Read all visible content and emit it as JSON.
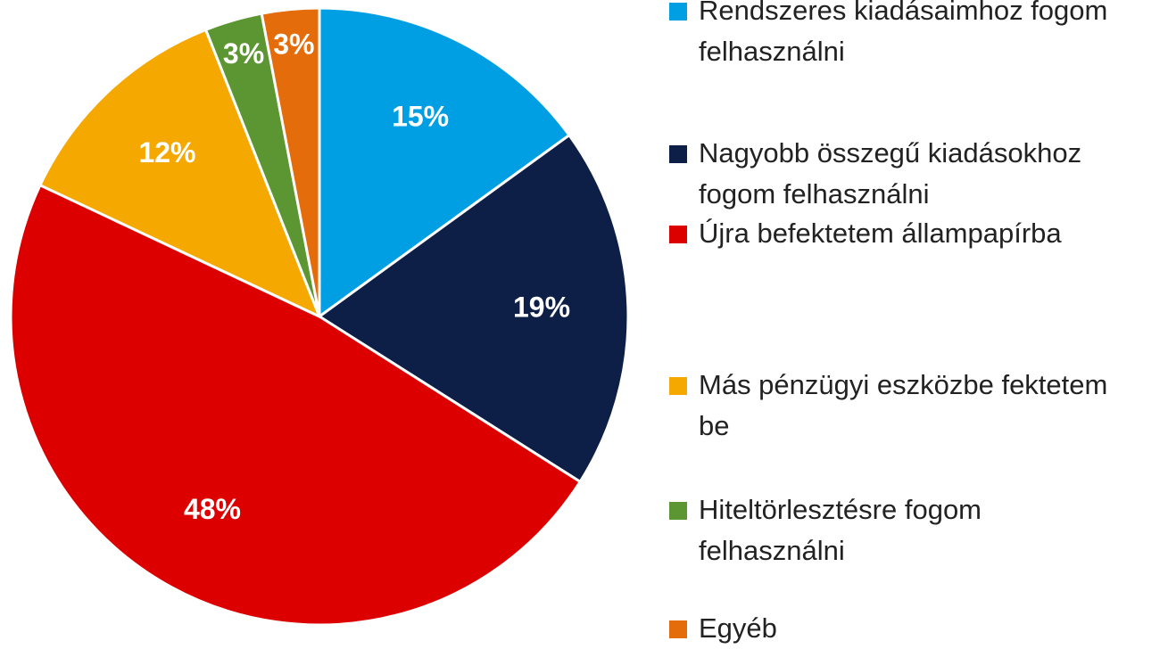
{
  "chart_data": {
    "type": "pie",
    "categories": [
      "Rendszeres kiadásaimhoz fogom felhasználni",
      "Nagyobb összegű kiadásokhoz fogom felhasználni",
      "Újra befektetem állampapírba",
      "Más pénzügyi eszközbe fektetem be",
      "Hiteltörlesztésre fogom felhasználni",
      "Egyéb"
    ],
    "values": [
      15,
      19,
      48,
      12,
      3,
      3
    ],
    "value_labels": [
      "15%",
      "19%",
      "48%",
      "12%",
      "3%",
      "3%"
    ],
    "colors": [
      "#009fe3",
      "#0e1f47",
      "#dc0000",
      "#f5a800",
      "#5c9632",
      "#e46c0a"
    ],
    "legend": "right"
  }
}
